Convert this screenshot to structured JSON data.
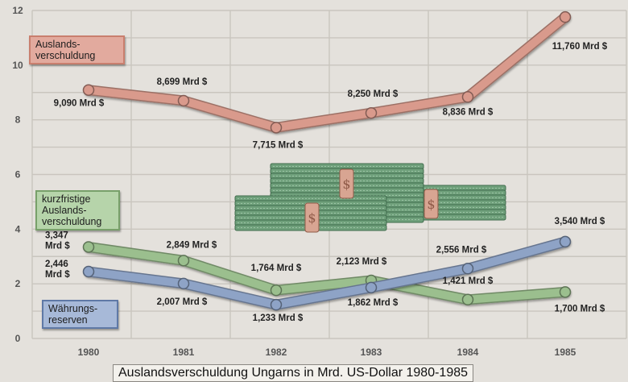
{
  "title": "Auslandsverschuldung Ungarns in Mrd. US-Dollar 1980-1985",
  "chart_data": {
    "type": "line",
    "categories": [
      "1980",
      "1981",
      "1982",
      "1983",
      "1984",
      "1985"
    ],
    "ylim": [
      0,
      12
    ],
    "yticks": [
      "0",
      "2",
      "4",
      "6",
      "8",
      "10",
      "12"
    ],
    "grid": true,
    "series": [
      {
        "name": "Auslandsverschuldung",
        "color": "#d99a8c",
        "values": [
          9.09,
          8.699,
          7.715,
          8.25,
          8.836,
          11.76
        ],
        "labels": [
          "9,090 Mrd $",
          "8,699 Mrd $",
          "7,715 Mrd $",
          "8,250 Mrd $",
          "8,836 Mrd $",
          "11,760 Mrd $"
        ]
      },
      {
        "name": "kurzfristige Auslandsverschuldung",
        "color": "#9bbf8e",
        "values": [
          3.347,
          2.849,
          1.764,
          2.123,
          1.421,
          1.7
        ],
        "labels": [
          "3,347\nMrd $",
          "2,849 Mrd $",
          "1,764 Mrd $",
          "2,123 Mrd $",
          "1,421 Mrd $",
          "1,700 Mrd $"
        ]
      },
      {
        "name": "Währungsreserven",
        "color": "#8ea3c6",
        "values": [
          2.446,
          2.007,
          1.233,
          1.862,
          2.556,
          3.54
        ],
        "labels": [
          "2,446\nMrd $",
          "2,007 Mrd $",
          "1,233 Mrd $",
          "1,862 Mrd $",
          "2,556 Mrd $",
          "3,540 Mrd $"
        ]
      }
    ]
  },
  "legend": {
    "debt": "Auslands-\nverschuldung",
    "short": "kurzfristige\nAuslands-\nverschuldung",
    "reserves": "Währungs-\nreserven"
  },
  "colors": {
    "grid": "#c9c5be",
    "money": "#5f8f6a",
    "tag_gold": "#d8a592"
  }
}
